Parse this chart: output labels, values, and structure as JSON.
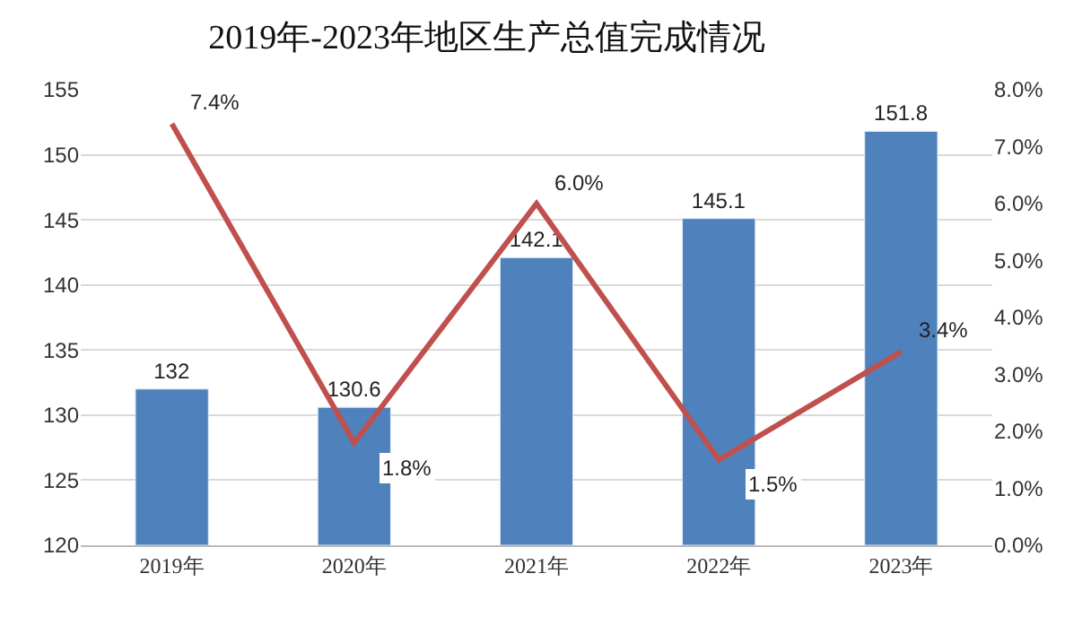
{
  "chart_data": {
    "type": "bar",
    "title": "2019年-2023年地区生产总值完成情况",
    "categories": [
      "2019年",
      "2020年",
      "2021年",
      "2022年",
      "2023年"
    ],
    "series": [
      {
        "color": "#4f81bd",
        "values": [
          132,
          130.6,
          142.1,
          145.1,
          151.8
        ],
        "value_labels": [
          "132",
          "130.6",
          "142.1",
          "145.1",
          "151.8"
        ]
      },
      {
        "type": "line",
        "axis": "y2",
        "color": "#c0504d",
        "values": [
          7.4,
          1.8,
          6.0,
          1.5,
          3.4
        ],
        "value_labels": [
          "7.4%",
          "1.8%",
          "6.0%",
          "1.5%",
          "3.4%"
        ]
      }
    ],
    "ylim": [
      120,
      155
    ],
    "yticks": [
      120,
      125,
      130,
      135,
      140,
      145,
      150,
      155
    ],
    "y2lim": [
      0,
      8
    ],
    "y2ticks": [
      {
        "value": 0,
        "label": "0.0%"
      },
      {
        "value": 1,
        "label": "1.0%"
      },
      {
        "value": 2,
        "label": "2.0%"
      },
      {
        "value": 3,
        "label": "3.0%"
      },
      {
        "value": 4,
        "label": "4.0%"
      },
      {
        "value": 5,
        "label": "5.0%"
      },
      {
        "value": 6,
        "label": "6.0%"
      },
      {
        "value": 7,
        "label": "7.0%"
      },
      {
        "value": 8,
        "label": "8.0%"
      }
    ],
    "grid": "y",
    "legend": false,
    "marker": "none",
    "line_style": "solid"
  }
}
